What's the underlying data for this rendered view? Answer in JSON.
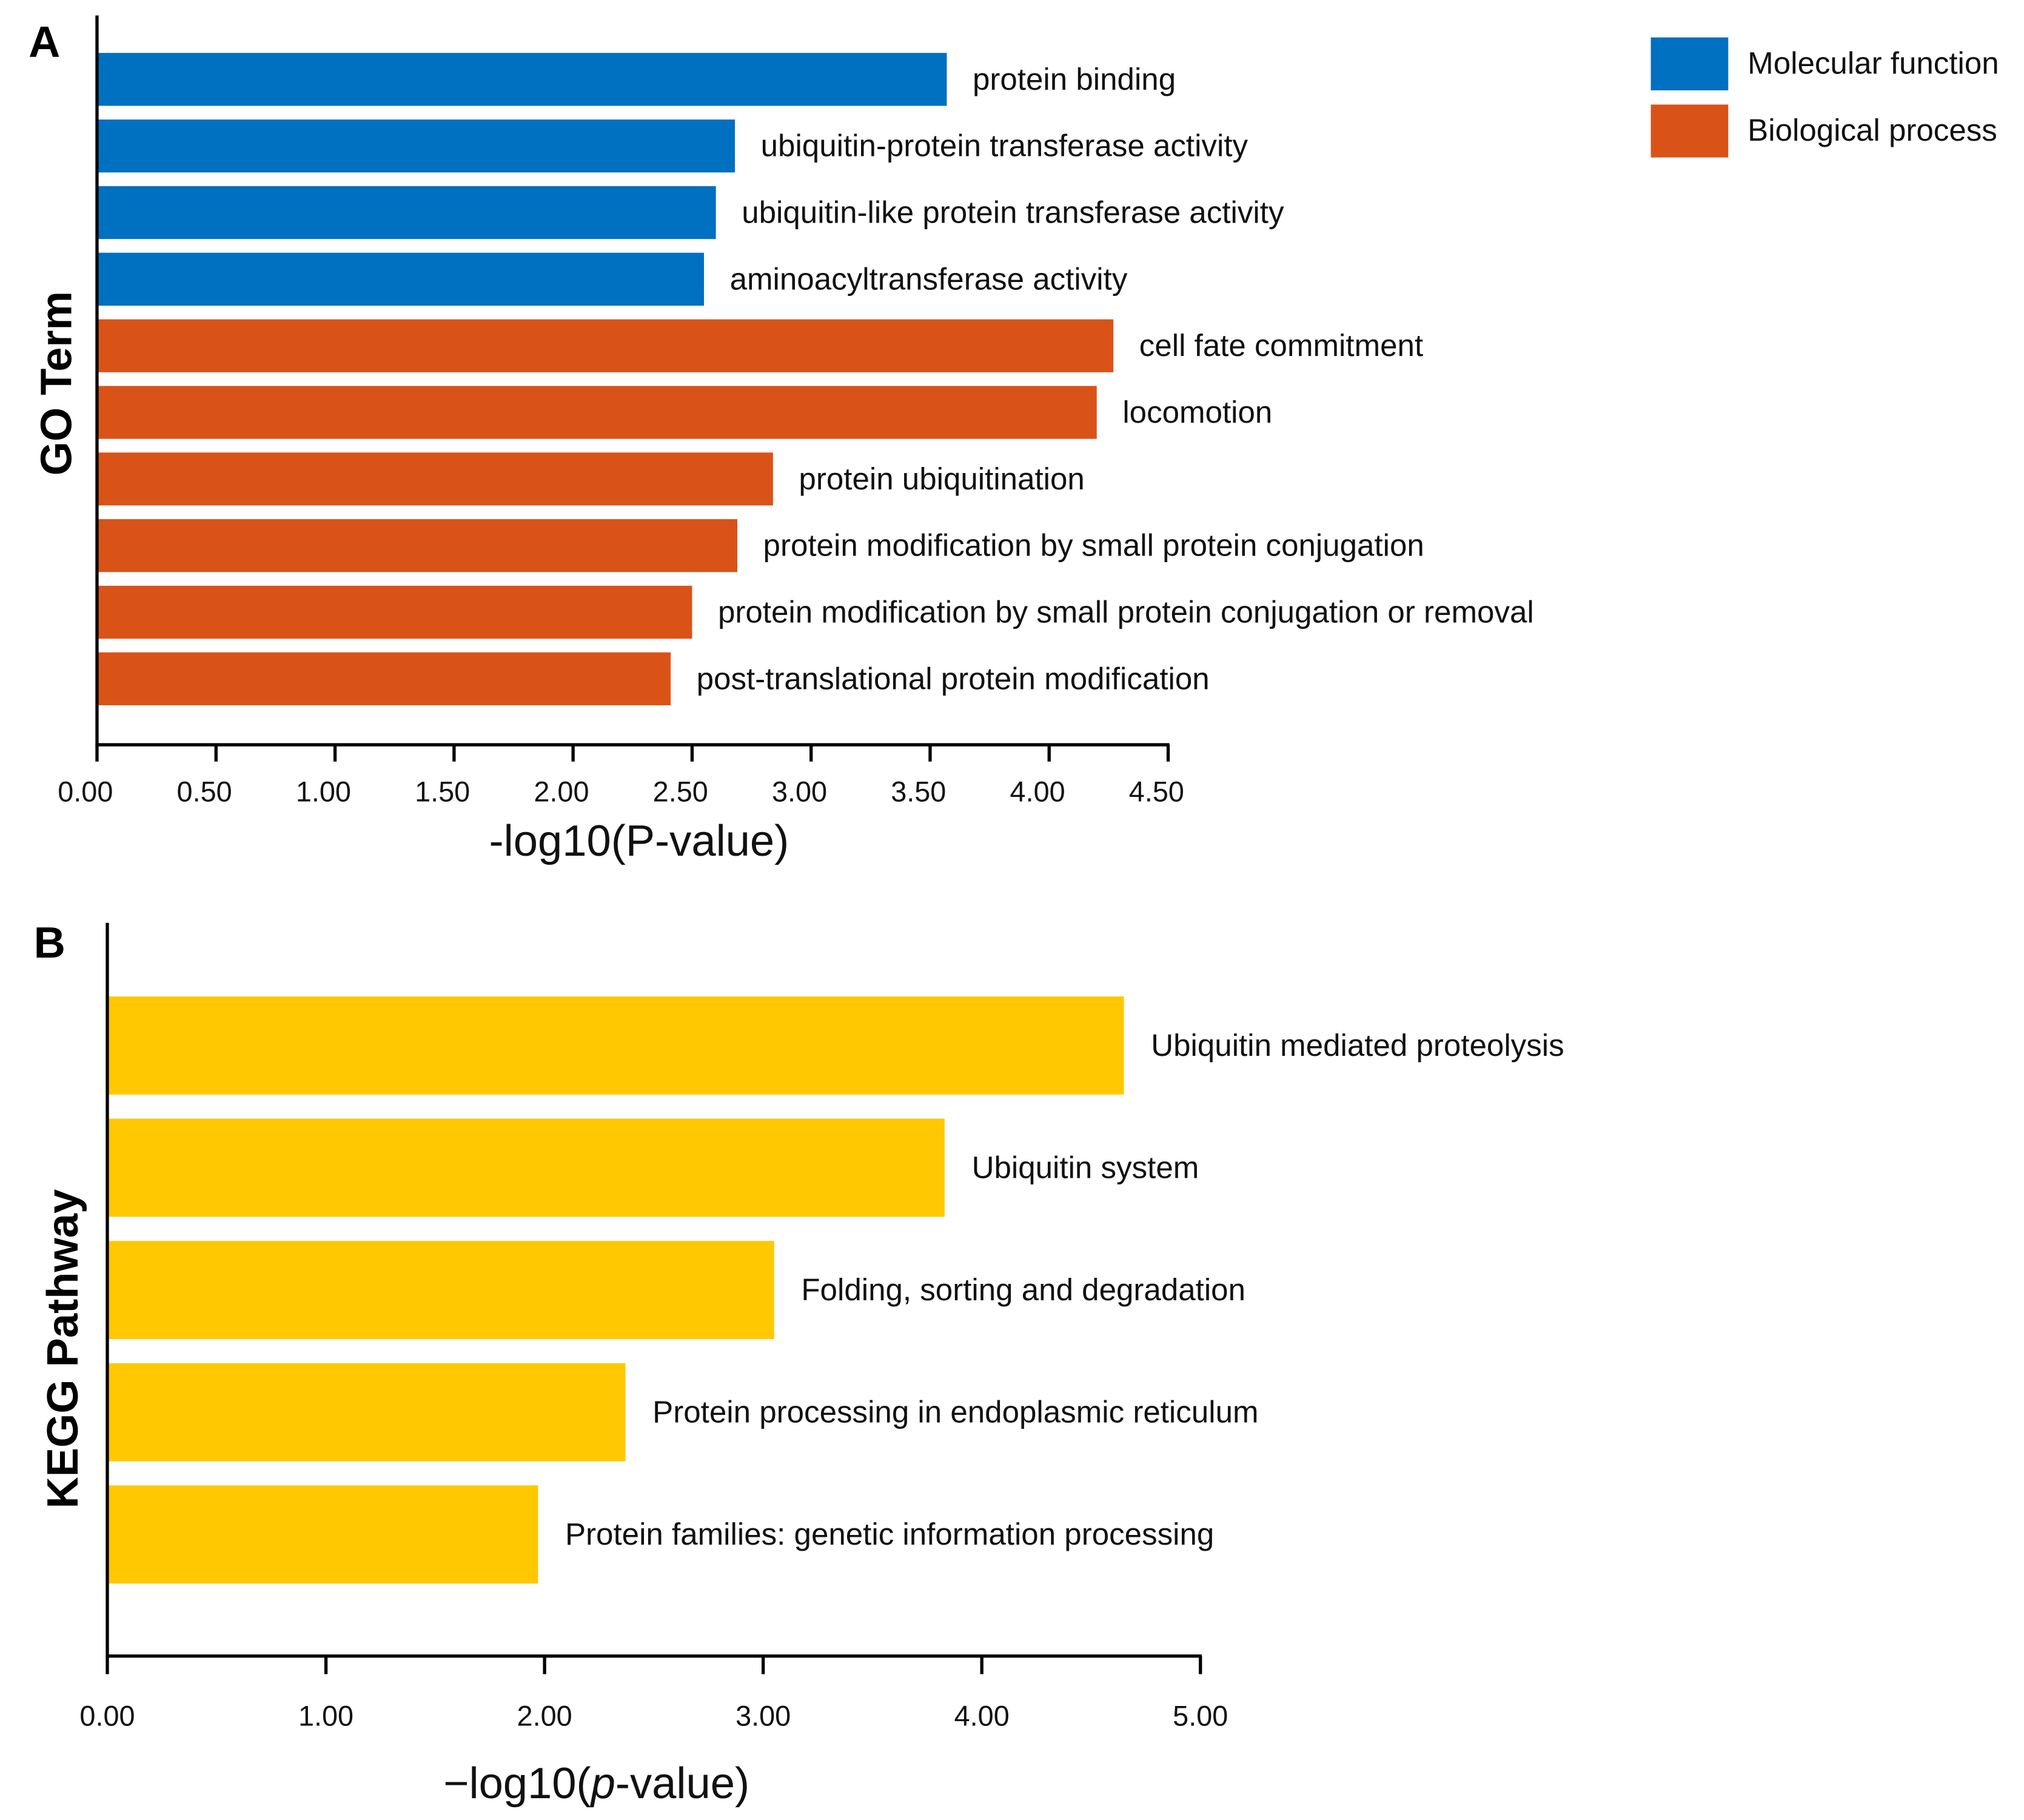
{
  "colors": {
    "molecular_function": "#0070C0",
    "biological_process": "#D95319",
    "kegg": "#FFC800",
    "axis": "#000000"
  },
  "chart_data": [
    {
      "panel": "A",
      "type": "bar",
      "orientation": "horizontal",
      "xlabel": "-log10(P-value)",
      "ylabel": "GO Term",
      "xlim": [
        0,
        4.5
      ],
      "xticks": [
        "0.00",
        "0.50",
        "1.00",
        "1.50",
        "2.00",
        "2.50",
        "3.00",
        "3.50",
        "4.00",
        "4.50"
      ],
      "legend": {
        "placement": "top-right",
        "entries": [
          "Molecular function",
          "Biological process"
        ]
      },
      "categories": [
        "protein binding",
        "ubiquitin-protein transferase activity",
        "ubiquitin-like protein transferase activity",
        "aminoacyltransferase activity",
        "cell fate commitment",
        "locomotion",
        "protein ubiquitination",
        "protein modification by small protein conjugation",
        "protein modification by small protein conjugation or removal",
        "post-translational protein modification"
      ],
      "values": [
        3.57,
        2.68,
        2.6,
        2.55,
        4.27,
        4.2,
        2.84,
        2.69,
        2.5,
        2.41
      ],
      "groups": [
        0,
        0,
        0,
        0,
        1,
        1,
        1,
        1,
        1,
        1
      ]
    },
    {
      "panel": "B",
      "type": "bar",
      "orientation": "horizontal",
      "xlabel": "−log10(p-value)",
      "xlabel_parts": [
        "−log10(",
        "p",
        "-value)"
      ],
      "ylabel": "KEGG Pathway",
      "xlim": [
        0,
        5
      ],
      "xticks": [
        "0.00",
        "1.00",
        "2.00",
        "3.00",
        "4.00",
        "5.00"
      ],
      "categories": [
        "Ubiquitin mediated proteolysis",
        "Ubiquitin system",
        "Folding, sorting and degradation",
        "Protein processing in endoplasmic reticulum",
        "Protein families: genetic information processing"
      ],
      "values": [
        4.65,
        3.83,
        3.05,
        2.37,
        1.97
      ]
    }
  ]
}
